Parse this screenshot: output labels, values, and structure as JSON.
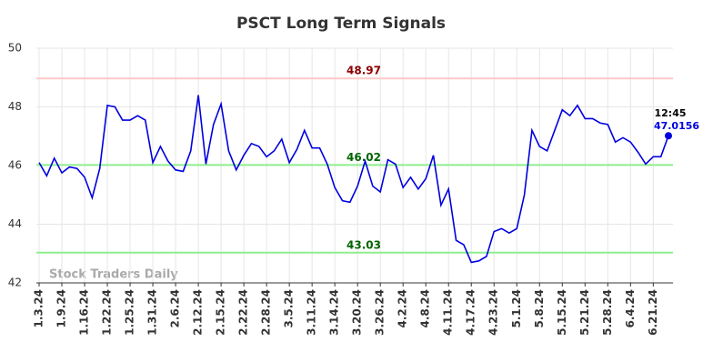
{
  "chart_data": {
    "type": "line",
    "title": "PSCT Long Term Signals",
    "watermark": "Stock Traders Daily",
    "categories": [
      "1.3.24",
      null,
      null,
      "1.9.24",
      null,
      null,
      "1.16.24",
      null,
      null,
      "1.22.24",
      null,
      null,
      "1.25.24",
      null,
      null,
      "1.31.24",
      null,
      null,
      "2.6.24",
      null,
      null,
      "2.12.24",
      null,
      null,
      "2.15.24",
      null,
      null,
      "2.22.24",
      null,
      null,
      "2.28.24",
      null,
      null,
      "3.5.24",
      null,
      null,
      "3.11.24",
      null,
      null,
      "3.14.24",
      null,
      null,
      "3.20.24",
      null,
      null,
      "3.26.24",
      null,
      null,
      "4.2.24",
      null,
      null,
      "4.8.24",
      null,
      null,
      "4.11.24",
      null,
      null,
      "4.17.24",
      null,
      null,
      "4.23.24",
      null,
      null,
      "5.1.24",
      null,
      null,
      "5.8.24",
      null,
      null,
      "5.15.24",
      null,
      null,
      "5.21.24",
      null,
      null,
      "5.28.24",
      null,
      null,
      "6.4.24",
      null,
      null,
      "6.21.24",
      null,
      null
    ],
    "values": [
      46.1,
      45.65,
      46.25,
      45.75,
      45.95,
      45.9,
      45.6,
      44.9,
      45.9,
      48.05,
      48.0,
      47.55,
      47.55,
      47.7,
      47.55,
      46.1,
      46.65,
      46.15,
      45.85,
      45.8,
      46.5,
      48.4,
      46.05,
      47.4,
      48.1,
      46.5,
      45.85,
      46.35,
      46.75,
      46.65,
      46.3,
      46.5,
      46.9,
      46.1,
      46.55,
      47.2,
      46.6,
      46.6,
      46.05,
      45.25,
      44.8,
      44.75,
      45.3,
      46.15,
      45.3,
      45.1,
      46.2,
      46.05,
      45.25,
      45.6,
      45.2,
      45.55,
      46.35,
      44.65,
      45.2,
      43.45,
      43.3,
      42.7,
      42.75,
      42.9,
      43.75,
      43.85,
      43.7,
      43.85,
      45.0,
      47.2,
      46.65,
      46.5,
      47.2,
      47.9,
      47.7,
      48.05,
      47.6,
      47.6,
      47.45,
      47.4,
      46.8,
      46.95,
      46.8,
      46.45,
      46.05,
      46.3,
      46.3,
      47.0156
    ],
    "color": "#0000e0",
    "last_time": "12:45",
    "hlines": [
      {
        "value": 48.97,
        "line_color": "#ffc8c8",
        "label_color": "#8b0000"
      },
      {
        "value": 46.02,
        "line_color": "#90ee90",
        "label_color": "#006400"
      },
      {
        "value": 43.03,
        "line_color": "#90ee90",
        "label_color": "#006400"
      }
    ],
    "ylim": [
      42,
      50
    ],
    "yticks": [
      42,
      44,
      46,
      48,
      50
    ],
    "grid": true
  }
}
